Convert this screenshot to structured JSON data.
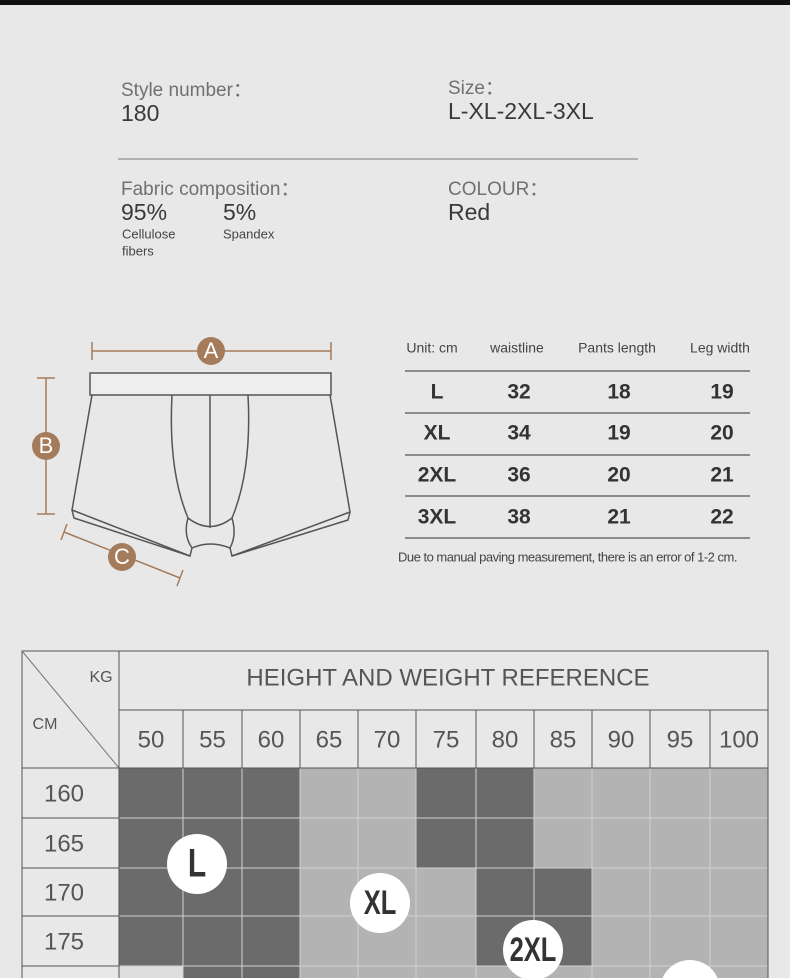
{
  "style_number": {
    "label": "Style number：",
    "value": "180"
  },
  "size": {
    "label": "Size：",
    "value": "L-XL-2XL-3XL"
  },
  "fabric": {
    "label": "Fabric composition：",
    "items": [
      {
        "percent": "95%",
        "name": [
          "Cellulose",
          "fibers"
        ]
      },
      {
        "percent": "5%",
        "name": [
          "Spandex"
        ]
      }
    ]
  },
  "colour": {
    "label": "COLOUR：",
    "value": "Red"
  },
  "diagram": {
    "labels": [
      "A",
      "B",
      "C"
    ]
  },
  "size_table": {
    "header": [
      "Unit: cm",
      "waistline",
      "Pants length",
      "Leg width"
    ],
    "rows": [
      [
        "L",
        32,
        18,
        19
      ],
      [
        "XL",
        34,
        19,
        20
      ],
      [
        "2XL",
        36,
        20,
        21
      ],
      [
        "3XL",
        38,
        21,
        22
      ]
    ],
    "note": "Due to manual paving measurement, there is an error of 1-2 cm."
  },
  "reference": {
    "title": "HEIGHT AND WEIGHT REFERENCE",
    "weight_label": "KG",
    "height_label": "CM",
    "weights": [
      50,
      55,
      60,
      65,
      70,
      75,
      80,
      85,
      90,
      95,
      100
    ],
    "heights": [
      160,
      165,
      170,
      175
    ],
    "badges": [
      "L",
      "XL",
      "2XL"
    ]
  }
}
